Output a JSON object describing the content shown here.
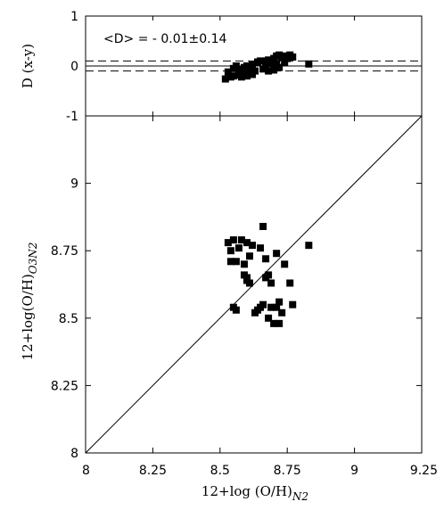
{
  "chart_data": [
    {
      "panel": "top",
      "type": "scatter",
      "ylabel": "D (x-y)",
      "annotation": "<D> = - 0.01±0.14",
      "xlim": [
        8,
        9.25
      ],
      "ylim": [
        -1,
        1
      ],
      "yticks": [
        "1",
        "0",
        "-1"
      ],
      "ytick_values": [
        1,
        0,
        -1
      ],
      "reference_lines": {
        "solid": 0,
        "dashed": [
          0.1,
          -0.1
        ]
      },
      "points": [
        {
          "x": 8.52,
          "y": -0.26
        },
        {
          "x": 8.53,
          "y": -0.12
        },
        {
          "x": 8.54,
          "y": -0.22
        },
        {
          "x": 8.55,
          "y": -0.05
        },
        {
          "x": 8.55,
          "y": -0.2
        },
        {
          "x": 8.56,
          "y": 0.0
        },
        {
          "x": 8.57,
          "y": -0.18
        },
        {
          "x": 8.57,
          "y": -0.08
        },
        {
          "x": 8.58,
          "y": -0.22
        },
        {
          "x": 8.59,
          "y": -0.12
        },
        {
          "x": 8.59,
          "y": -0.03
        },
        {
          "x": 8.6,
          "y": -0.2
        },
        {
          "x": 8.6,
          "y": 0.0
        },
        {
          "x": 8.61,
          "y": -0.15
        },
        {
          "x": 8.61,
          "y": -0.06
        },
        {
          "x": 8.62,
          "y": -0.17
        },
        {
          "x": 8.62,
          "y": 0.02
        },
        {
          "x": 8.63,
          "y": -0.1
        },
        {
          "x": 8.64,
          "y": 0.08
        },
        {
          "x": 8.65,
          "y": 0.1
        },
        {
          "x": 8.66,
          "y": -0.06
        },
        {
          "x": 8.67,
          "y": 0.1
        },
        {
          "x": 8.67,
          "y": 0.0
        },
        {
          "x": 8.68,
          "y": 0.12
        },
        {
          "x": 8.68,
          "y": -0.1
        },
        {
          "x": 8.69,
          "y": 0.05
        },
        {
          "x": 8.7,
          "y": 0.15
        },
        {
          "x": 8.7,
          "y": -0.08
        },
        {
          "x": 8.71,
          "y": 0.2
        },
        {
          "x": 8.71,
          "y": 0.05
        },
        {
          "x": 8.72,
          "y": -0.03
        },
        {
          "x": 8.72,
          "y": 0.22
        },
        {
          "x": 8.73,
          "y": 0.18
        },
        {
          "x": 8.74,
          "y": 0.2
        },
        {
          "x": 8.74,
          "y": 0.08
        },
        {
          "x": 8.75,
          "y": 0.15
        },
        {
          "x": 8.76,
          "y": 0.22
        },
        {
          "x": 8.77,
          "y": 0.18
        },
        {
          "x": 8.83,
          "y": 0.04
        }
      ]
    },
    {
      "panel": "bottom",
      "type": "scatter",
      "xlabel": "12+log (O/H)",
      "xlabel_sub": "N2",
      "ylabel": "12+log(O/H)",
      "ylabel_sub": "O3N2",
      "xlim": [
        8,
        9.25
      ],
      "ylim": [
        8,
        9.25
      ],
      "xticks": [
        "8",
        "8.25",
        "8.5",
        "8.75",
        "9",
        "9.25"
      ],
      "xtick_values": [
        8,
        8.25,
        8.5,
        8.75,
        9,
        9.25
      ],
      "yticks": [
        "8",
        "8.25",
        "8.5",
        "8.75",
        "9"
      ],
      "ytick_values": [
        8,
        8.25,
        8.5,
        8.75,
        9
      ],
      "one_to_one_line": true,
      "points": [
        {
          "x": 8.53,
          "y": 8.78
        },
        {
          "x": 8.54,
          "y": 8.71
        },
        {
          "x": 8.54,
          "y": 8.75
        },
        {
          "x": 8.55,
          "y": 8.79
        },
        {
          "x": 8.56,
          "y": 8.71
        },
        {
          "x": 8.57,
          "y": 8.76
        },
        {
          "x": 8.58,
          "y": 8.79
        },
        {
          "x": 8.59,
          "y": 8.7
        },
        {
          "x": 8.59,
          "y": 8.66
        },
        {
          "x": 8.6,
          "y": 8.78
        },
        {
          "x": 8.6,
          "y": 8.64
        },
        {
          "x": 8.6,
          "y": 8.65
        },
        {
          "x": 8.61,
          "y": 8.63
        },
        {
          "x": 8.61,
          "y": 8.73
        },
        {
          "x": 8.62,
          "y": 8.77
        },
        {
          "x": 8.55,
          "y": 8.54
        },
        {
          "x": 8.56,
          "y": 8.53
        },
        {
          "x": 8.63,
          "y": 8.52
        },
        {
          "x": 8.64,
          "y": 8.53
        },
        {
          "x": 8.65,
          "y": 8.76
        },
        {
          "x": 8.65,
          "y": 8.54
        },
        {
          "x": 8.66,
          "y": 8.84
        },
        {
          "x": 8.66,
          "y": 8.55
        },
        {
          "x": 8.67,
          "y": 8.65
        },
        {
          "x": 8.67,
          "y": 8.72
        },
        {
          "x": 8.68,
          "y": 8.66
        },
        {
          "x": 8.68,
          "y": 8.5
        },
        {
          "x": 8.69,
          "y": 8.63
        },
        {
          "x": 8.69,
          "y": 8.54
        },
        {
          "x": 8.7,
          "y": 8.48
        },
        {
          "x": 8.71,
          "y": 8.74
        },
        {
          "x": 8.71,
          "y": 8.54
        },
        {
          "x": 8.72,
          "y": 8.48
        },
        {
          "x": 8.72,
          "y": 8.56
        },
        {
          "x": 8.73,
          "y": 8.52
        },
        {
          "x": 8.74,
          "y": 8.7
        },
        {
          "x": 8.76,
          "y": 8.63
        },
        {
          "x": 8.77,
          "y": 8.55
        },
        {
          "x": 8.83,
          "y": 8.77
        }
      ]
    }
  ]
}
